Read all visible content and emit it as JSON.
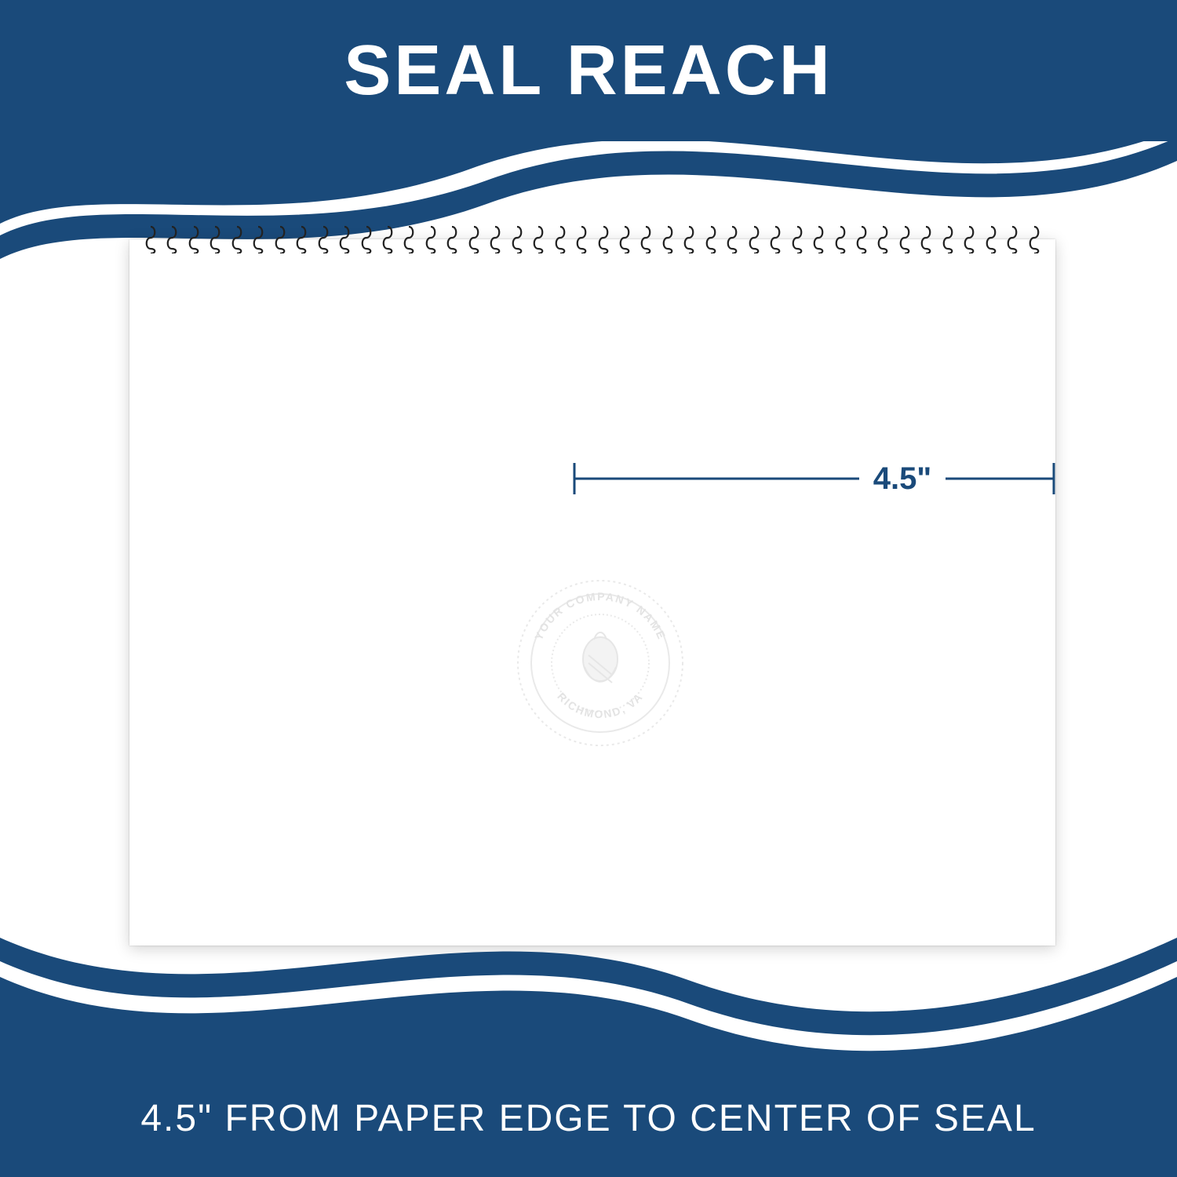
{
  "header": {
    "title": "SEAL REACH",
    "bg_color": "#1a4a7a",
    "text_color": "#ffffff",
    "title_fontsize": 90
  },
  "footer": {
    "text": "4.5\" FROM PAPER EDGE TO CENTER OF SEAL",
    "bg_color": "#1a4a7a",
    "text_color": "#ffffff",
    "fontsize": 48
  },
  "measurement": {
    "value": "4.5\"",
    "line_color": "#1a4a7a",
    "fontsize": 40
  },
  "seal": {
    "top_text": "YOUR COMPANY NAME",
    "bottom_text": "RICHMOND, VA",
    "emboss_color": "#d8d8d8"
  },
  "swoosh": {
    "primary": "#1a4a7a",
    "secondary": "#ffffff"
  },
  "notepad": {
    "bg": "#ffffff",
    "shadow": "rgba(0,0,0,0.18)",
    "spiral_count": 42
  }
}
